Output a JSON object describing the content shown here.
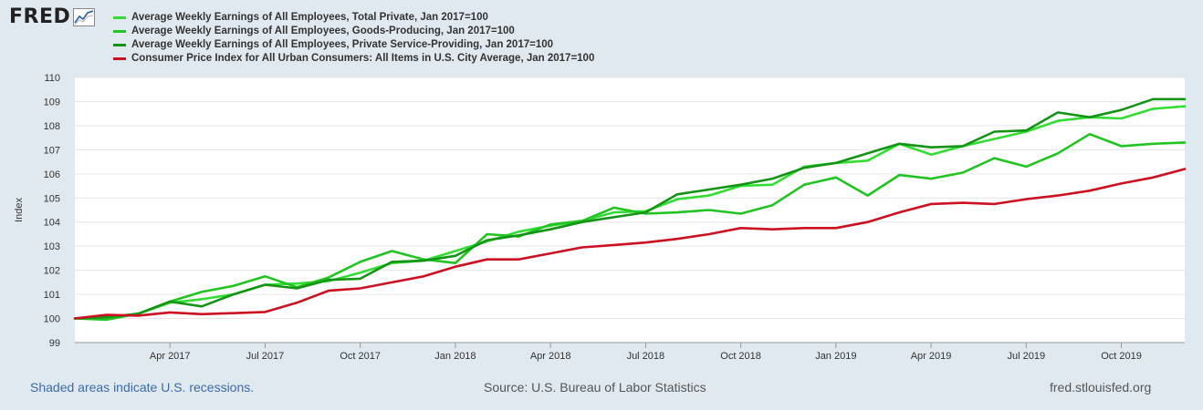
{
  "header": {
    "logo_text": "FRED",
    "logo_icon": "chart-line-icon"
  },
  "colors": {
    "background": "#e1e9f0",
    "plot_bg": "#ffffff",
    "grid": "#e6e6e6"
  },
  "chart_data": {
    "type": "line",
    "title": "",
    "xlabel": "",
    "ylabel": "Index",
    "ylim": [
      99,
      110
    ],
    "yticks": [
      99,
      100,
      101,
      102,
      103,
      104,
      105,
      106,
      107,
      108,
      109,
      110
    ],
    "grid": true,
    "legend_position": "top-left",
    "x": [
      "2017-01",
      "2017-02",
      "2017-03",
      "2017-04",
      "2017-05",
      "2017-06",
      "2017-07",
      "2017-08",
      "2017-09",
      "2017-10",
      "2017-11",
      "2017-12",
      "2018-01",
      "2018-02",
      "2018-03",
      "2018-04",
      "2018-05",
      "2018-06",
      "2018-07",
      "2018-08",
      "2018-09",
      "2018-10",
      "2018-11",
      "2018-12",
      "2019-01",
      "2019-02",
      "2019-03",
      "2019-04",
      "2019-05",
      "2019-06",
      "2019-07",
      "2019-08",
      "2019-09",
      "2019-10",
      "2019-11",
      "2019-12"
    ],
    "xticks": [
      {
        "index": 3,
        "label": "Apr 2017"
      },
      {
        "index": 6,
        "label": "Jul 2017"
      },
      {
        "index": 9,
        "label": "Oct 2017"
      },
      {
        "index": 12,
        "label": "Jan 2018"
      },
      {
        "index": 15,
        "label": "Apr 2018"
      },
      {
        "index": 18,
        "label": "Jul 2018"
      },
      {
        "index": 21,
        "label": "Oct 2018"
      },
      {
        "index": 24,
        "label": "Jan 2019"
      },
      {
        "index": 27,
        "label": "Apr 2019"
      },
      {
        "index": 30,
        "label": "Jul 2019"
      },
      {
        "index": 33,
        "label": "Oct 2019"
      }
    ],
    "series": [
      {
        "name": "Average Weekly Earnings of All Employees, Total Private, Jan 2017=100",
        "color": "#33dd33",
        "values": [
          100.0,
          100.05,
          100.2,
          100.65,
          100.8,
          101.0,
          101.4,
          101.45,
          101.55,
          101.9,
          102.3,
          102.4,
          102.8,
          103.2,
          103.6,
          103.85,
          104.05,
          104.4,
          104.45,
          104.95,
          105.1,
          105.5,
          105.55,
          106.3,
          106.45,
          106.55,
          107.25,
          106.8,
          107.15,
          107.45,
          107.75,
          108.2,
          108.35,
          108.3,
          108.7,
          108.8
        ]
      },
      {
        "name": "Average Weekly Earnings of All Employees, Goods-Producing, Jan 2017=100",
        "color": "#22c422",
        "values": [
          100.0,
          99.95,
          100.2,
          100.7,
          101.1,
          101.35,
          101.75,
          101.3,
          101.7,
          102.35,
          102.8,
          102.45,
          102.3,
          103.5,
          103.4,
          103.9,
          104.05,
          104.6,
          104.35,
          104.4,
          104.5,
          104.35,
          104.7,
          105.55,
          105.85,
          105.1,
          105.95,
          105.8,
          106.05,
          106.65,
          106.3,
          106.85,
          107.65,
          107.15,
          107.25,
          107.3
        ]
      },
      {
        "name": "Average Weekly Earnings of All Employees, Private Service-Providing, Jan 2017=100",
        "color": "#149414",
        "values": [
          100.0,
          100.05,
          100.2,
          100.7,
          100.5,
          101.0,
          101.4,
          101.25,
          101.6,
          101.65,
          102.35,
          102.4,
          102.6,
          103.25,
          103.45,
          103.7,
          104.0,
          104.2,
          104.4,
          105.15,
          105.35,
          105.55,
          105.8,
          106.25,
          106.45,
          106.85,
          107.25,
          107.1,
          107.15,
          107.75,
          107.8,
          108.55,
          108.35,
          108.65,
          109.1,
          109.1
        ]
      },
      {
        "name": "Consumer Price Index for All Urban Consumers: All Items in U.S. City Average, Jan 2017=100",
        "color": "#cc1122",
        "values": [
          100.0,
          100.15,
          100.12,
          100.25,
          100.18,
          100.22,
          100.27,
          100.65,
          101.15,
          101.25,
          101.5,
          101.75,
          102.15,
          102.45,
          102.45,
          102.7,
          102.95,
          103.05,
          103.15,
          103.3,
          103.5,
          103.75,
          103.7,
          103.75,
          103.75,
          104.0,
          104.4,
          104.75,
          104.8,
          104.75,
          104.95,
          105.1,
          105.3,
          105.6,
          105.85,
          106.2
        ]
      }
    ]
  },
  "footer": {
    "recessions_note": "Shaded areas indicate U.S. recessions.",
    "source": "Source: U.S. Bureau of Labor Statistics",
    "site": "fred.stlouisfed.org"
  }
}
